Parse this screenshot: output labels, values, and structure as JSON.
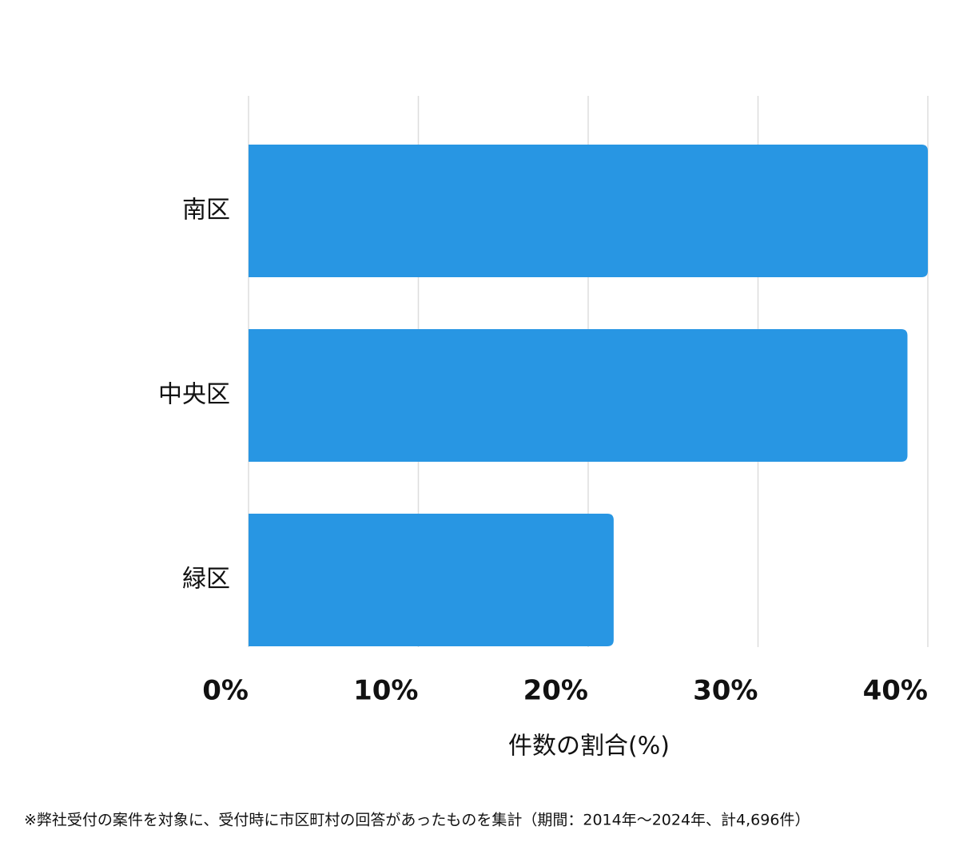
{
  "chart_data": {
    "type": "bar",
    "orientation": "horizontal",
    "categories": [
      "南区",
      "中央区",
      "緑区"
    ],
    "values": [
      40.0,
      38.8,
      21.5
    ],
    "color": "#2896e3",
    "xlim": [
      0,
      40
    ],
    "xticks": [
      {
        "value": 0,
        "label": "0%"
      },
      {
        "value": 10,
        "label": "10%"
      },
      {
        "value": 20,
        "label": "20%"
      },
      {
        "value": 30,
        "label": "30%"
      },
      {
        "value": 40,
        "label": "40%"
      }
    ],
    "xlabel": "件数の割合(%)",
    "grid": true,
    "footnote": "※弊社受付の案件を対象に、受付時に市区町村の回答があったものを集計（期間：2014年〜2024年、計4,696件）"
  }
}
